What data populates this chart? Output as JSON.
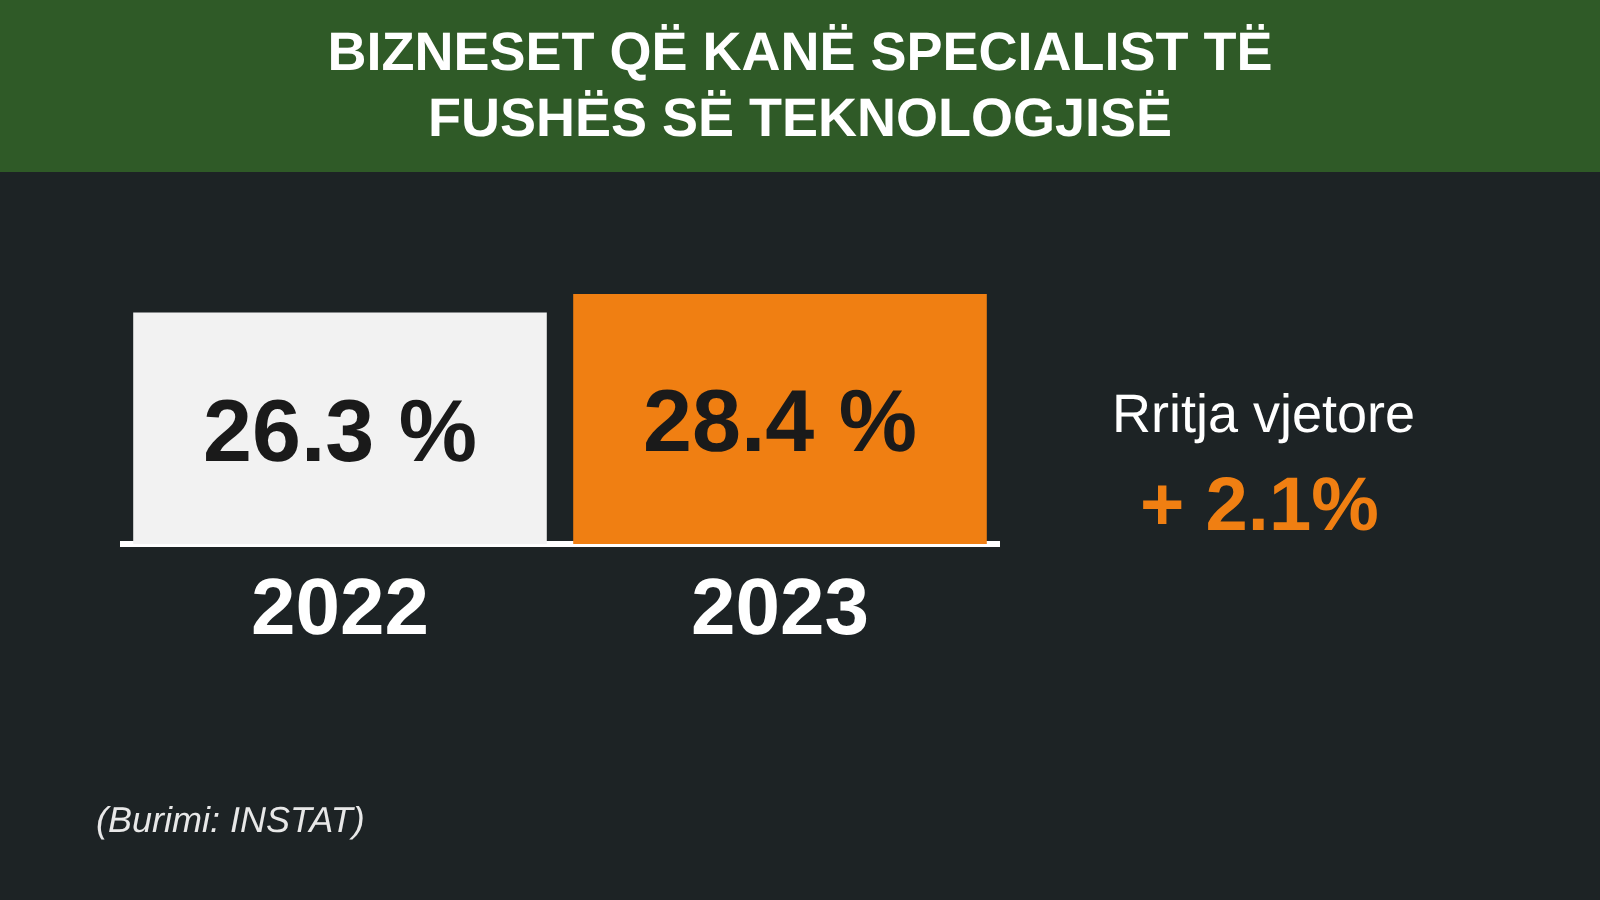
{
  "chart_data": {
    "type": "bar",
    "title": "BIZNESET QË KANË SPECIALIST TË FUSHËS SË TEKNOLOGJISË",
    "categories": [
      "2022",
      "2023"
    ],
    "values": [
      26.3,
      28.4
    ],
    "colors": [
      "#f2f2f2",
      "#f07f12"
    ],
    "value_labels": [
      "26.3 %",
      "28.4 %"
    ],
    "annotations": [
      "Rritja vjetore",
      "+ 2.1%",
      "(Burimi: INSTAT)"
    ]
  }
}
